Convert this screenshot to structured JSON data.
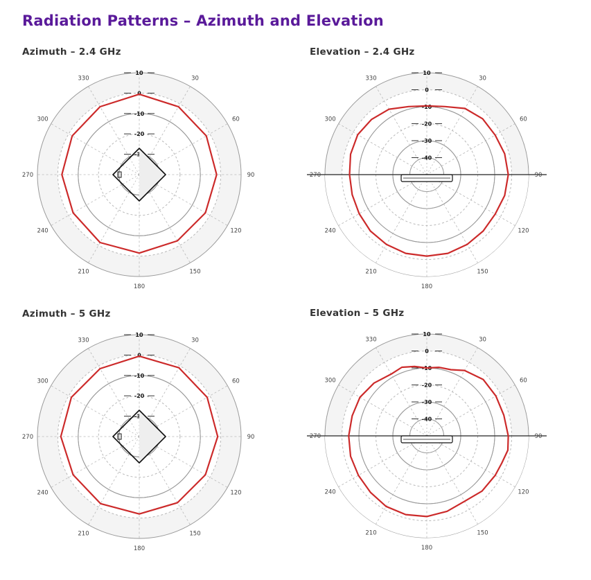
{
  "page": {
    "title": "Radiation Patterns – Azimuth and Elevation"
  },
  "colors": {
    "title": "#5a1a9a",
    "trace": "#cc2a2a",
    "grid": "#9a9a9a",
    "dashed": "#b8b8b8",
    "outer_fill": "#f4f4f4"
  },
  "chart_data": [
    {
      "type": "polar",
      "title": "Azimuth – 2.4 GHz",
      "unit_ticks": [
        "10",
        "0",
        "-10",
        "-20",
        "-30"
      ],
      "angle_ticks": [
        "0",
        "30",
        "60",
        "90",
        "120",
        "150",
        "180",
        "210",
        "240",
        "270",
        "300",
        "330"
      ],
      "angle_labels_shown": [
        "30",
        "60",
        "90",
        "120",
        "150",
        "180",
        "210",
        "240",
        "270",
        "300",
        "330"
      ],
      "rlim": [
        -40,
        10
      ],
      "series": [
        {
          "angles": [
            0,
            30,
            60,
            90,
            120,
            150,
            180,
            210,
            240,
            270,
            300,
            330,
            360
          ],
          "gains": [
            -0.5,
            -1.5,
            -2.0,
            -2.0,
            -2.5,
            -2.5,
            -1.5,
            -1.5,
            -2.5,
            -2.0,
            -2.0,
            -1.5,
            -0.5
          ]
        }
      ],
      "device_view": "top"
    },
    {
      "type": "polar",
      "title": "Elevation – 2.4 GHz",
      "unit_ticks": [
        "10",
        "0",
        "-10",
        "-20",
        "-30",
        "-40"
      ],
      "angle_labels_shown": [
        "30",
        "60",
        "90",
        "120",
        "150",
        "180",
        "210",
        "240",
        "270",
        "300",
        "330"
      ],
      "rlim": [
        -50,
        10
      ],
      "series": [
        {
          "angles": [
            0,
            15,
            30,
            45,
            60,
            75,
            90,
            105,
            120,
            135,
            150,
            165,
            180,
            195,
            210,
            225,
            240,
            255,
            270,
            285,
            300,
            315,
            330,
            345,
            360
          ],
          "gains": [
            -9.5,
            -8.5,
            -5.0,
            -3.5,
            -3.5,
            -2.5,
            -2.0,
            -2.5,
            -3.5,
            -3.0,
            -2.5,
            -2.0,
            -2.0,
            -2.0,
            -2.5,
            -3.0,
            -4.0,
            -4.5,
            -4.5,
            -3.5,
            -3.0,
            -4.0,
            -5.5,
            -8.5,
            -9.5
          ]
        }
      ],
      "device_view": "side"
    },
    {
      "type": "polar",
      "title": "Azimuth – 5 GHz",
      "unit_ticks": [
        "10",
        "0",
        "-10",
        "-20",
        "-30"
      ],
      "angle_labels_shown": [
        "30",
        "60",
        "90",
        "120",
        "150",
        "180",
        "210",
        "240",
        "270",
        "300",
        "330"
      ],
      "rlim": [
        -40,
        10
      ],
      "series": [
        {
          "angles": [
            0,
            30,
            60,
            90,
            120,
            150,
            180,
            210,
            240,
            270,
            300,
            330,
            360
          ],
          "gains": [
            -0.5,
            -1.0,
            -1.5,
            -1.5,
            -2.5,
            -2.5,
            -2.0,
            -2.0,
            -2.5,
            -1.5,
            -1.5,
            -1.5,
            -0.5
          ]
        }
      ],
      "device_view": "top"
    },
    {
      "type": "polar",
      "title": "Elevation – 5 GHz",
      "unit_ticks": [
        "10",
        "0",
        "-10",
        "-20",
        "-30",
        "-40"
      ],
      "angle_labels_shown": [
        "30",
        "60",
        "90",
        "120",
        "150",
        "180",
        "210",
        "240",
        "270",
        "300",
        "330"
      ],
      "rlim": [
        -50,
        10
      ],
      "series": [
        {
          "angles": [
            0,
            10,
            20,
            30,
            45,
            60,
            75,
            90,
            100,
            110,
            120,
            135,
            150,
            165,
            180,
            195,
            210,
            225,
            240,
            255,
            270,
            285,
            300,
            315,
            330,
            340,
            350,
            360
          ],
          "gains": [
            -10.0,
            -9.0,
            -8.5,
            -5.5,
            -3.0,
            -3.0,
            -3.0,
            -2.0,
            -1.5,
            -3.0,
            -3.5,
            -4.0,
            -5.5,
            -4.0,
            -2.5,
            -2.0,
            -2.0,
            -3.0,
            -3.5,
            -3.5,
            -4.0,
            -4.5,
            -4.5,
            -6.0,
            -8.0,
            -7.0,
            -8.5,
            -10.0
          ]
        }
      ],
      "device_view": "side"
    }
  ]
}
